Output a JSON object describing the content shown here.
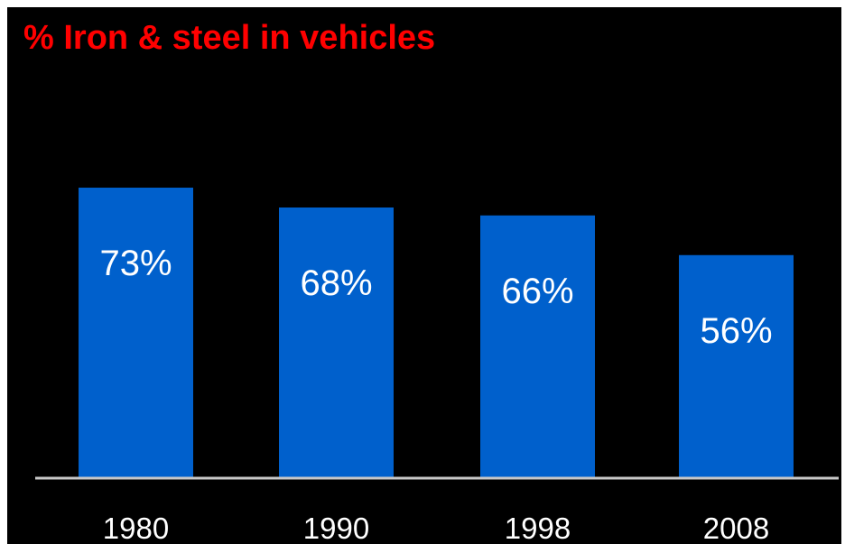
{
  "colors": {
    "background": "#000000",
    "title": "#ff0000",
    "bar": "#0060cc",
    "baseline": "#c8c8c8",
    "label": "#ffffff"
  },
  "chart_data": {
    "type": "bar",
    "title": "% Iron & steel in vehicles",
    "xlabel": "",
    "ylabel": "",
    "categories": [
      "1980",
      "1990",
      "1998",
      "2008"
    ],
    "values": [
      73,
      68,
      66,
      56
    ],
    "data_labels": [
      "73%",
      "68%",
      "66%",
      "56%"
    ],
    "unit": "%",
    "ylim": [
      0,
      100
    ],
    "grid": false,
    "legend": "none"
  }
}
